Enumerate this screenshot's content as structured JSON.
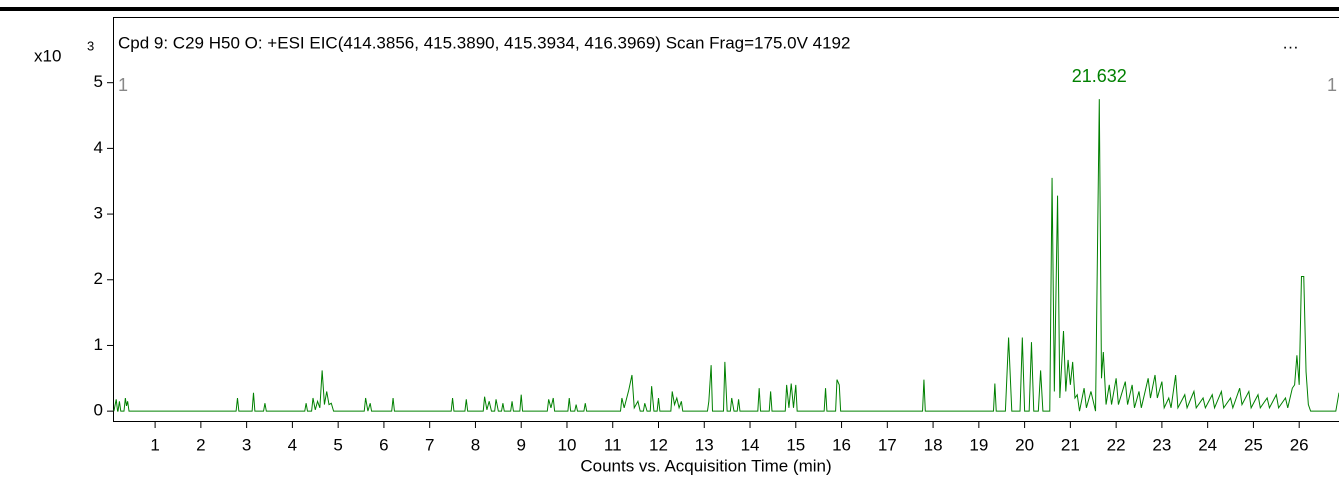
{
  "chart_data": {
    "type": "line",
    "title": "Cpd 9: C29 H50 O: +ESI EIC(414.3856, 415.3890, 415.3934, 416.3969) Scan Frag=175.0V 4192",
    "title_overflow": "…",
    "x_label": "Counts vs. Acquisition Time (min)",
    "y_multiplier": "x10",
    "y_exponent": "3",
    "corner_labels": [
      "1",
      "1"
    ],
    "xlim": [
      0.08,
      26.87
    ],
    "ylim": [
      -0.15,
      6.0
    ],
    "xticks": [
      1,
      2,
      3,
      4,
      5,
      6,
      7,
      8,
      9,
      10,
      11,
      12,
      13,
      14,
      15,
      16,
      17,
      18,
      19,
      20,
      21,
      22,
      23,
      24,
      25,
      26
    ],
    "yticks": [
      0,
      1,
      2,
      3,
      4,
      5
    ],
    "annotations": [
      {
        "text": "21.632",
        "x": 21.632,
        "y": 4.75
      }
    ],
    "series": [
      {
        "color": "#008000",
        "x": [
          0.1,
          0.15,
          0.18,
          0.19,
          0.22,
          0.25,
          0.32,
          0.35,
          0.375,
          0.4,
          0.43,
          2.77,
          2.8,
          2.83,
          3.12,
          3.15,
          3.18,
          3.37,
          3.4,
          3.43,
          4.27,
          4.3,
          4.33,
          4.42,
          4.45,
          4.5,
          4.55,
          4.6,
          4.65,
          4.7,
          4.75,
          4.8,
          4.85,
          4.9,
          5.57,
          5.6,
          5.65,
          5.7,
          5.73,
          6.17,
          6.2,
          6.23,
          7.47,
          7.5,
          7.53,
          7.77,
          7.8,
          7.83,
          8.17,
          8.2,
          8.25,
          8.3,
          8.35,
          8.42,
          8.45,
          8.5,
          8.57,
          8.6,
          8.63,
          8.77,
          8.8,
          8.83,
          8.97,
          9.0,
          9.03,
          9.57,
          9.6,
          9.65,
          9.7,
          9.73,
          10.02,
          10.05,
          10.08,
          10.17,
          10.2,
          10.23,
          10.37,
          10.4,
          10.43,
          11.17,
          11.2,
          11.25,
          11.35,
          11.42,
          11.47,
          11.55,
          11.6,
          11.67,
          11.7,
          11.75,
          11.82,
          11.85,
          11.9,
          11.97,
          12.0,
          12.03,
          12.27,
          12.3,
          12.35,
          12.4,
          12.45,
          12.5,
          12.53,
          13.07,
          13.1,
          13.15,
          13.18,
          13.42,
          13.45,
          13.5,
          13.57,
          13.6,
          13.65,
          13.72,
          13.75,
          13.78,
          14.17,
          14.2,
          14.23,
          14.42,
          14.45,
          14.48,
          14.77,
          14.8,
          14.85,
          14.9,
          14.95,
          15.0,
          15.03,
          15.62,
          15.65,
          15.68,
          15.87,
          15.9,
          15.95,
          15.98,
          17.77,
          17.8,
          17.83,
          19.32,
          19.35,
          19.38,
          19.58,
          19.65,
          19.72,
          19.9,
          19.95,
          20.0,
          20.1,
          20.15,
          20.2,
          20.3,
          20.35,
          20.4,
          20.55,
          20.6,
          20.65,
          20.72,
          20.77,
          20.85,
          20.9,
          20.95,
          21.0,
          21.05,
          21.1,
          21.15,
          21.2,
          21.3,
          21.35,
          21.45,
          21.55,
          21.632,
          21.68,
          21.72,
          21.78,
          21.85,
          21.9,
          22.0,
          22.05,
          22.2,
          22.25,
          22.35,
          22.4,
          22.5,
          22.55,
          22.7,
          22.75,
          22.85,
          22.9,
          23.0,
          23.05,
          23.15,
          23.2,
          23.3,
          23.35,
          23.5,
          23.55,
          23.7,
          23.75,
          23.9,
          23.95,
          24.1,
          24.15,
          24.3,
          24.35,
          24.5,
          24.55,
          24.7,
          24.75,
          24.9,
          24.95,
          25.1,
          25.15,
          25.3,
          25.35,
          25.5,
          25.55,
          25.7,
          25.75,
          25.85,
          25.9,
          25.95,
          26.0,
          26.05,
          26.1,
          26.15,
          26.2,
          26.25,
          26.8,
          26.87
        ],
        "values": [
          0,
          0.18,
          0,
          0,
          0.15,
          0,
          0,
          0.2,
          0.08,
          0.15,
          0,
          0,
          0.2,
          0,
          0,
          0.28,
          0,
          0,
          0.12,
          0,
          0,
          0.12,
          0,
          0,
          0.2,
          0.02,
          0.15,
          0.05,
          0.62,
          0.1,
          0.3,
          0.1,
          0.12,
          0,
          0,
          0.2,
          0,
          0.12,
          0,
          0,
          0.2,
          0,
          0,
          0.2,
          0,
          0,
          0.18,
          0,
          0,
          0.22,
          0.02,
          0.15,
          0,
          0,
          0.18,
          0,
          0,
          0.12,
          0,
          0,
          0.15,
          0,
          0,
          0.25,
          0,
          0,
          0.18,
          0.05,
          0.2,
          0,
          0,
          0.2,
          0,
          0,
          0.1,
          0,
          0,
          0.12,
          0,
          0,
          0.2,
          0.05,
          0.32,
          0.55,
          0.05,
          0.15,
          0,
          0,
          0.12,
          0,
          0,
          0.38,
          0,
          0,
          0.2,
          0,
          0,
          0.3,
          0.1,
          0.2,
          0.05,
          0.15,
          0,
          0,
          0.15,
          0.7,
          0,
          0,
          0.75,
          0,
          0,
          0.2,
          0,
          0,
          0.18,
          0,
          0,
          0.35,
          0,
          0,
          0.3,
          0,
          0,
          0.4,
          0.05,
          0.42,
          0.05,
          0.4,
          0,
          0,
          0.35,
          0,
          0,
          0.48,
          0.4,
          0,
          0,
          0.48,
          0,
          0,
          0.42,
          0,
          0,
          1.12,
          0,
          0,
          1.12,
          0,
          0,
          1.05,
          0,
          0,
          0.62,
          0,
          0,
          3.55,
          0.3,
          3.28,
          0.2,
          1.22,
          0.3,
          0.78,
          0.4,
          0.75,
          0.2,
          0.25,
          0,
          0.35,
          0.05,
          0.3,
          0,
          4.75,
          0.5,
          0.9,
          0.1,
          0.4,
          0.1,
          0.5,
          0.1,
          0.45,
          0.1,
          0.4,
          0.05,
          0.3,
          0.05,
          0.5,
          0.2,
          0.55,
          0.2,
          0.45,
          0.05,
          0.2,
          0.05,
          0.55,
          0.05,
          0.25,
          0.05,
          0.3,
          0.05,
          0.2,
          0.05,
          0.25,
          0.05,
          0.3,
          0.05,
          0.2,
          0.05,
          0.35,
          0.1,
          0.3,
          0.05,
          0.25,
          0.05,
          0.2,
          0.05,
          0.25,
          0.05,
          0.2,
          0.05,
          0.35,
          0.4,
          0.85,
          0.4,
          2.05,
          2.05,
          0.6,
          0.1,
          0,
          0,
          0.28
        ]
      }
    ]
  }
}
